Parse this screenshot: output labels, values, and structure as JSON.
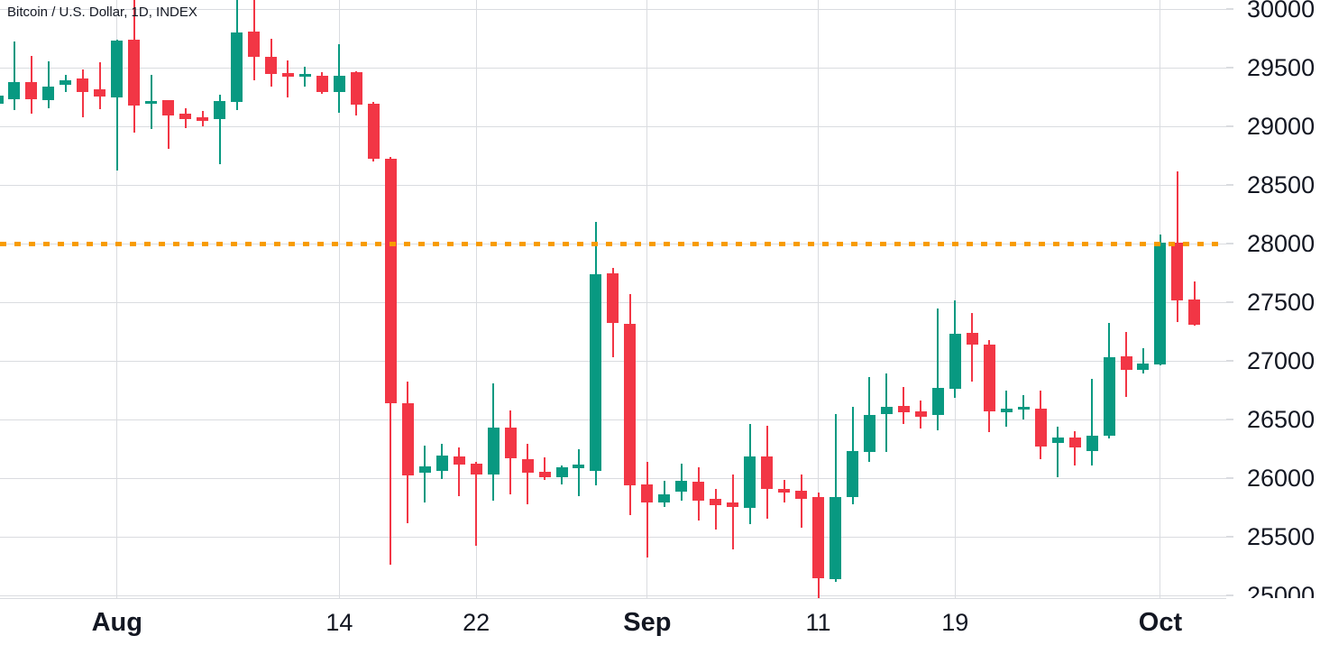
{
  "header": {
    "title": "Bitcoin / U.S. Dollar, 1D, INDEX"
  },
  "colors": {
    "up": "#089981",
    "down": "#f23645",
    "grid": "#dadce0",
    "axis_text": "#131722",
    "price_line": "#f89c00",
    "background": "#ffffff"
  },
  "chart_data": {
    "type": "candlestick",
    "title": "Bitcoin / U.S. Dollar, 1D, INDEX",
    "symbol": "Bitcoin / U.S. Dollar",
    "interval": "1D",
    "exchange": "INDEX",
    "legend_position": "top-left",
    "grid": true,
    "price_line": {
      "value": 28000,
      "style": "dotted",
      "color": "#f89c00"
    },
    "y_axis": {
      "ticks": [
        30000,
        29500,
        29000,
        28500,
        28000,
        27500,
        27000,
        26500,
        26000,
        25500,
        25000
      ],
      "visible_range": [
        24977,
        30077
      ]
    },
    "x_axis": {
      "ticks": [
        {
          "label": "Aug",
          "candle_index": 7,
          "bold": true
        },
        {
          "label": "14",
          "candle_index": 20,
          "bold": false
        },
        {
          "label": "22",
          "candle_index": 28,
          "bold": false
        },
        {
          "label": "Sep",
          "candle_index": 38,
          "bold": true
        },
        {
          "label": "11",
          "candle_index": 48,
          "bold": false
        },
        {
          "label": "19",
          "candle_index": 56,
          "bold": false
        },
        {
          "label": "Oct",
          "candle_index": 68,
          "bold": true
        }
      ]
    },
    "candles_format": [
      "date",
      "open",
      "high",
      "low",
      "close"
    ],
    "candles": [
      [
        "Jul 25",
        29190,
        29265,
        29185,
        29260
      ],
      [
        "Jul 26",
        29230,
        29720,
        29140,
        29380
      ],
      [
        "Jul 27",
        29380,
        29600,
        29105,
        29230
      ],
      [
        "Jul 28",
        29220,
        29555,
        29155,
        29340
      ],
      [
        "Jul 29",
        29355,
        29435,
        29295,
        29395
      ],
      [
        "Jul 30",
        29405,
        29485,
        29075,
        29295
      ],
      [
        "Jul 31",
        29315,
        29550,
        29145,
        29250
      ],
      [
        "Aug 1",
        29245,
        29735,
        28620,
        29730
      ],
      [
        "Aug 2",
        29735,
        30080,
        28950,
        29180
      ],
      [
        "Aug 3",
        29190,
        29440,
        28975,
        29215
      ],
      [
        "Aug 4",
        29220,
        29225,
        28810,
        29090
      ],
      [
        "Aug 5",
        29110,
        29155,
        28985,
        29065
      ],
      [
        "Aug 6",
        29075,
        29130,
        29000,
        29050
      ],
      [
        "Aug 7",
        29065,
        29270,
        28680,
        29215
      ],
      [
        "Aug 8",
        29205,
        30080,
        29135,
        29800
      ],
      [
        "Aug 9",
        29810,
        30080,
        29390,
        29595
      ],
      [
        "Aug 10",
        29595,
        29745,
        29335,
        29445
      ],
      [
        "Aug 11",
        29455,
        29565,
        29245,
        29425
      ],
      [
        "Aug 12",
        29425,
        29510,
        29335,
        29450
      ],
      [
        "Aug 13",
        29430,
        29465,
        29275,
        29295
      ],
      [
        "Aug 14",
        29295,
        29700,
        29115,
        29430
      ],
      [
        "Aug 15",
        29460,
        29470,
        29090,
        29185
      ],
      [
        "Aug 16",
        29190,
        29205,
        28700,
        28725
      ],
      [
        "Aug 17",
        28725,
        28740,
        25260,
        26640
      ],
      [
        "Aug 18",
        26635,
        26825,
        25615,
        26025
      ],
      [
        "Aug 19",
        26045,
        26275,
        25795,
        26100
      ],
      [
        "Aug 20",
        26065,
        26295,
        25995,
        26190
      ],
      [
        "Aug 21",
        26185,
        26260,
        25845,
        26115
      ],
      [
        "Aug 22",
        26125,
        26135,
        25425,
        26030
      ],
      [
        "Aug 23",
        26030,
        26810,
        25810,
        26430
      ],
      [
        "Aug 24",
        26430,
        26575,
        25865,
        26170
      ],
      [
        "Aug 25",
        26165,
        26295,
        25775,
        26045
      ],
      [
        "Aug 26",
        26055,
        26180,
        25985,
        26005
      ],
      [
        "Aug 27",
        26005,
        26105,
        25950,
        26095
      ],
      [
        "Aug 28",
        26085,
        26245,
        25845,
        26115
      ],
      [
        "Aug 29",
        26060,
        28185,
        25935,
        27740
      ],
      [
        "Aug 30",
        27745,
        27790,
        27030,
        27320
      ],
      [
        "Aug 31",
        27315,
        27570,
        25685,
        25940
      ],
      [
        "Sep 1",
        25950,
        26135,
        25320,
        25795
      ],
      [
        "Sep 2",
        25790,
        25980,
        25755,
        25860
      ],
      [
        "Sep 3",
        25885,
        26125,
        25810,
        25975
      ],
      [
        "Sep 4",
        25970,
        26090,
        25635,
        25810
      ],
      [
        "Sep 5",
        25820,
        25905,
        25560,
        25770
      ],
      [
        "Sep 6",
        25790,
        26030,
        25390,
        25750
      ],
      [
        "Sep 7",
        25750,
        26460,
        25610,
        26185
      ],
      [
        "Sep 8",
        26185,
        26445,
        25655,
        25905
      ],
      [
        "Sep 9",
        25910,
        25985,
        25795,
        25875
      ],
      [
        "Sep 10",
        25890,
        26030,
        25575,
        25820
      ],
      [
        "Sep 11",
        25835,
        25880,
        24955,
        25145
      ],
      [
        "Sep 12",
        25140,
        26545,
        25115,
        25840
      ],
      [
        "Sep 13",
        25840,
        26610,
        25780,
        26230
      ],
      [
        "Sep 14",
        26225,
        26860,
        26135,
        26535
      ],
      [
        "Sep 15",
        26545,
        26890,
        26220,
        26610
      ],
      [
        "Sep 16",
        26615,
        26775,
        26465,
        26560
      ],
      [
        "Sep 17",
        26570,
        26660,
        26425,
        26525
      ],
      [
        "Sep 18",
        26535,
        27450,
        26405,
        26770
      ],
      [
        "Sep 19",
        26765,
        27515,
        26685,
        27230
      ],
      [
        "Sep 20",
        27235,
        27405,
        26825,
        27140
      ],
      [
        "Sep 21",
        27140,
        27175,
        26390,
        26570
      ],
      [
        "Sep 22",
        26565,
        26750,
        26440,
        26595
      ],
      [
        "Sep 23",
        26585,
        26710,
        26500,
        26610
      ],
      [
        "Sep 24",
        26595,
        26745,
        26160,
        26270
      ],
      [
        "Sep 25",
        26300,
        26440,
        26010,
        26350
      ],
      [
        "Sep 26",
        26345,
        26400,
        26105,
        26260
      ],
      [
        "Sep 27",
        26230,
        26850,
        26110,
        26365
      ],
      [
        "Sep 28",
        26365,
        27320,
        26335,
        27030
      ],
      [
        "Sep 29",
        27040,
        27245,
        26690,
        26920
      ],
      [
        "Sep 30",
        26920,
        27105,
        26890,
        26975
      ],
      [
        "Oct 1",
        26970,
        28080,
        26965,
        28010
      ],
      [
        "Oct 2",
        28010,
        28615,
        27330,
        27515
      ],
      [
        "Oct 3",
        27520,
        27680,
        27300,
        27305
      ]
    ]
  }
}
